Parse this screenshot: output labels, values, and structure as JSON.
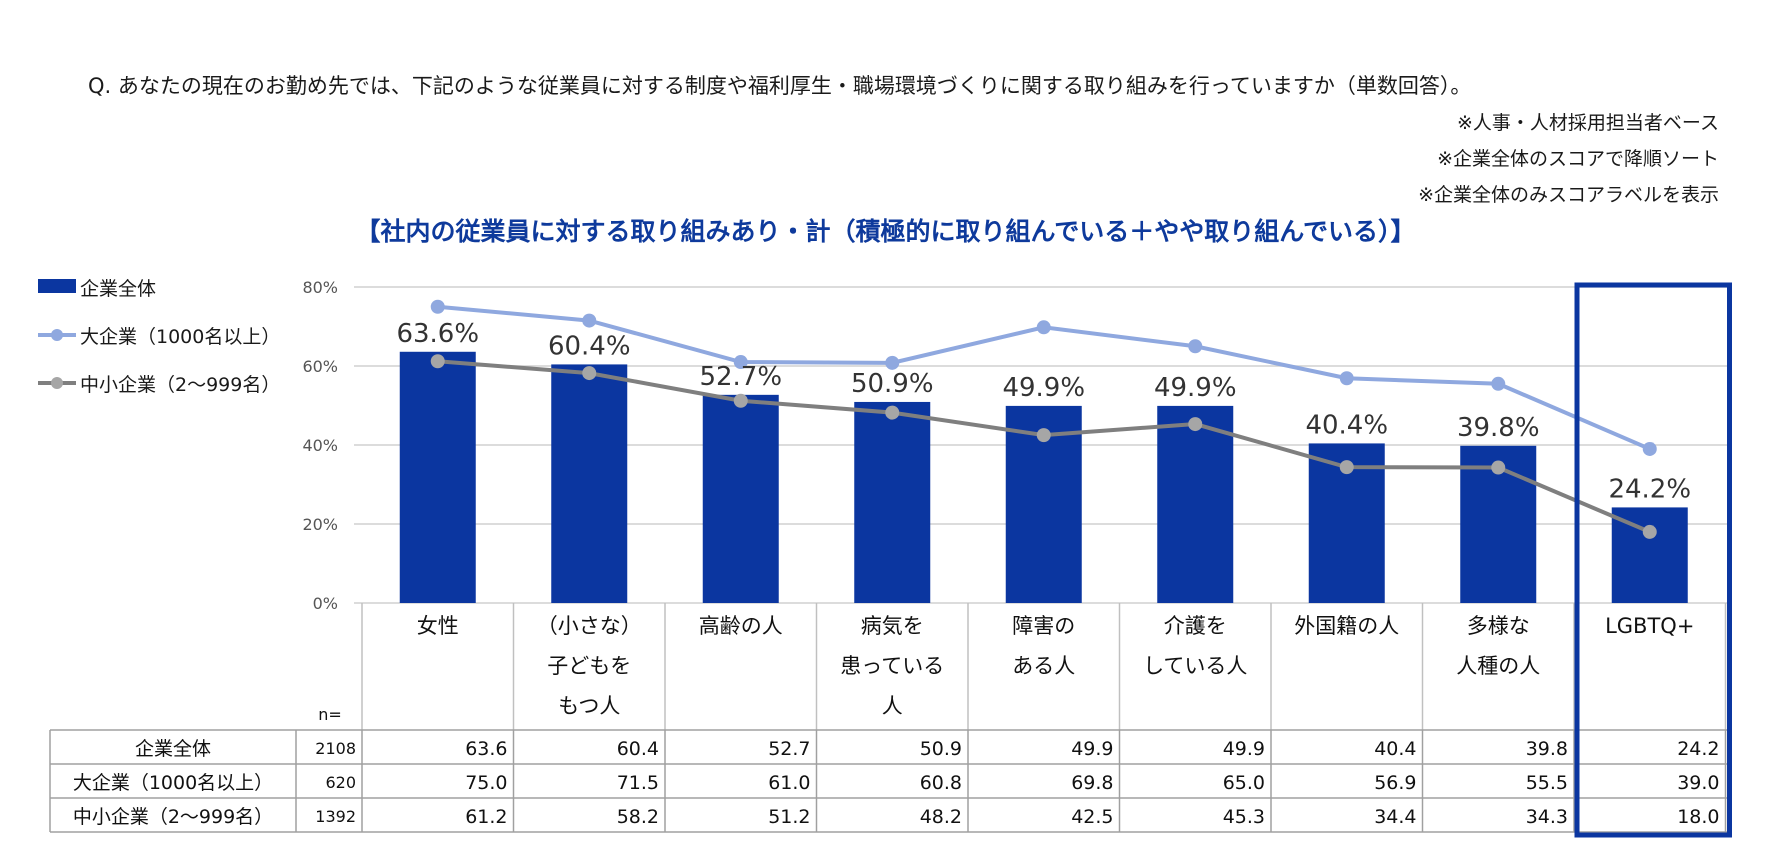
{
  "question": "Q. あなたの現在のお勤め先では、下記のような従業員に対する制度や福利厚生・職場環境づくりに関する取り組みを行っていますか（単数回答）。",
  "notes": [
    "※人事・人材採用担当者ベース",
    "※企業全体のスコアで降順ソート",
    "※企業全体のみスコアラベルを表示"
  ],
  "chart_data": {
    "type": "bar",
    "title": "【社内の従業員に対する取り組みあり・計（積極的に取り組んでいる＋やや取り組んでいる）】",
    "categories": [
      [
        "女性"
      ],
      [
        "（小さな）",
        "子どもを",
        "もつ人"
      ],
      [
        "高齢の人"
      ],
      [
        "病気を",
        "患っている",
        "人"
      ],
      [
        "障害の",
        "ある人"
      ],
      [
        "介護を",
        "している人"
      ],
      [
        "外国籍の人"
      ],
      [
        "多様な",
        "人種の人"
      ],
      [
        "LGBTQ+"
      ]
    ],
    "series": [
      {
        "name": "企業全体",
        "kind": "bar",
        "n": "2108",
        "color": "#0b36a0",
        "values": [
          63.6,
          60.4,
          52.7,
          50.9,
          49.9,
          49.9,
          40.4,
          39.8,
          24.2
        ]
      },
      {
        "name": "大企業（1000名以上）",
        "kind": "line",
        "n": "620",
        "color": "#8fa8df",
        "values": [
          75.0,
          71.5,
          61.0,
          60.8,
          69.8,
          65.0,
          56.9,
          55.5,
          39.0
        ]
      },
      {
        "name": "中小企業（2〜999名）",
        "kind": "line",
        "n": "1392",
        "color": "#7f7f7f",
        "values": [
          61.2,
          58.2,
          51.2,
          48.2,
          42.5,
          45.3,
          34.4,
          34.3,
          18.0
        ]
      }
    ],
    "y_ticks": [
      "0%",
      "20%",
      "40%",
      "60%",
      "80%"
    ],
    "ylim": [
      0,
      80
    ],
    "n_label": "n=",
    "highlight_category": 8
  }
}
